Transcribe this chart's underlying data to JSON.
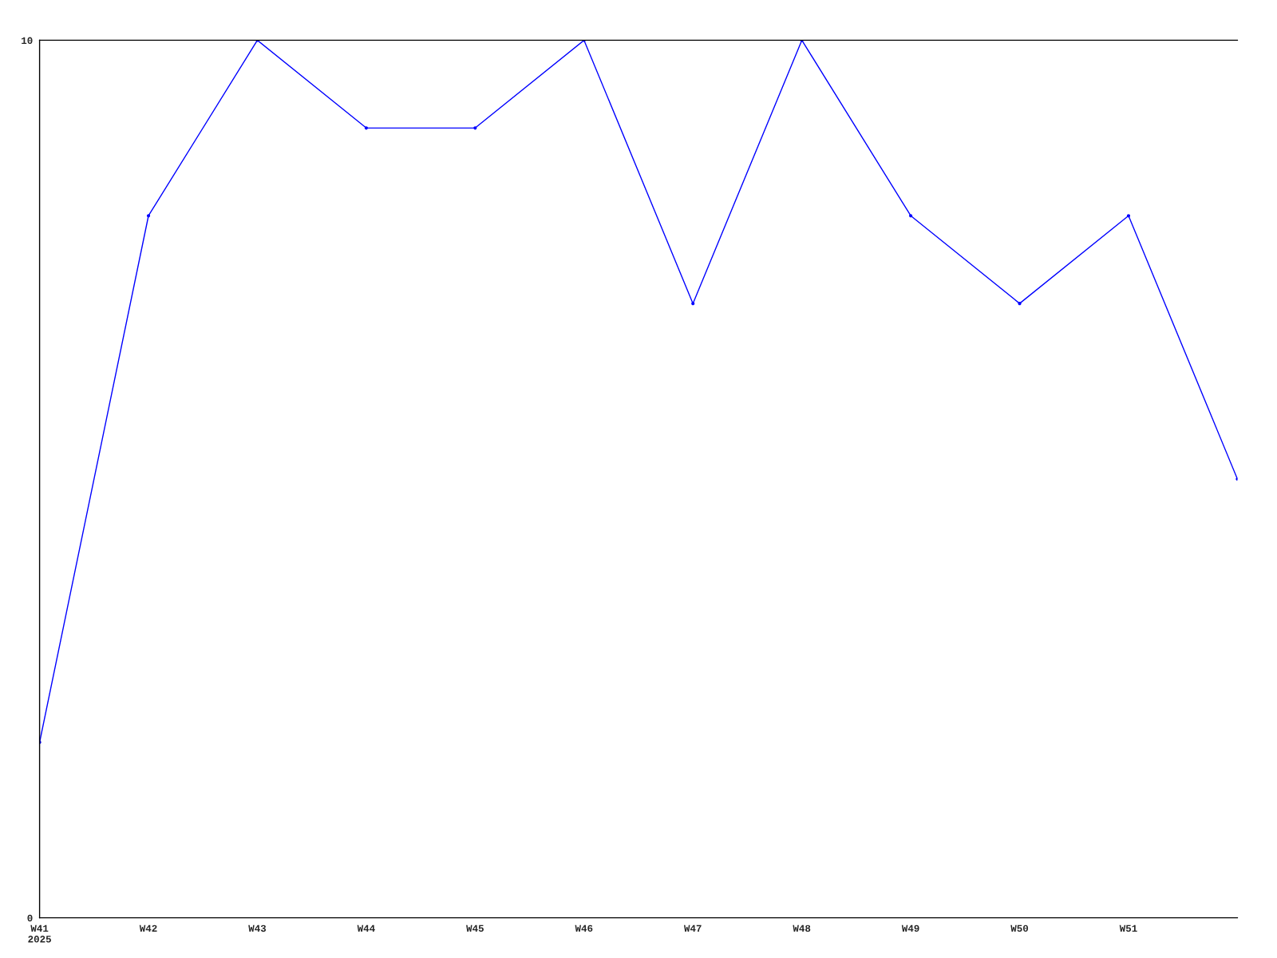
{
  "chart_data": {
    "type": "line",
    "categories": [
      "W41\n2025",
      "W42",
      "W43",
      "W44",
      "W45",
      "W46",
      "W47",
      "W48",
      "W49",
      "W50",
      "W51",
      null
    ],
    "series": [
      {
        "color": "#0000ff",
        "values": [
          2,
          8,
          10,
          9,
          9,
          10,
          7,
          10,
          8,
          7,
          8,
          5
        ]
      }
    ],
    "ylim": [
      0,
      10
    ],
    "yticks": [
      0,
      10
    ],
    "grid": false,
    "marker": "circle",
    "line_style": "solid"
  }
}
